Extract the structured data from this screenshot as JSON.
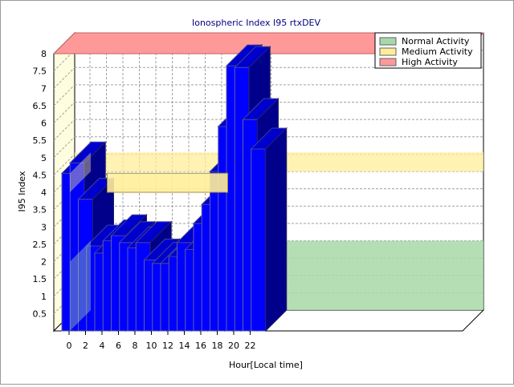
{
  "chart_data": {
    "type": "bar",
    "title": "Ionospheric Index I95 rtxDEV",
    "xlabel": "Hour[Local time]",
    "ylabel": "I95 Index",
    "x": [
      0,
      1,
      2,
      3,
      4,
      5,
      6,
      7,
      8,
      9,
      10,
      11,
      12,
      13,
      14,
      15,
      16,
      17,
      18,
      19,
      20,
      21,
      22,
      23
    ],
    "values": [
      4.55,
      4.85,
      3.8,
      2.45,
      2.25,
      2.6,
      2.75,
      2.55,
      2.4,
      2.55,
      2.05,
      1.95,
      1.95,
      2.15,
      2.55,
      2.35,
      3.1,
      3.65,
      4.6,
      5.9,
      7.65,
      7.6,
      6.1,
      5.25
    ],
    "ylim": [
      0,
      8
    ],
    "y_ticks": [
      "0.5",
      "1",
      "1.5",
      "2",
      "2.5",
      "3",
      "3.5",
      "4",
      "4.5",
      "5",
      "5.5",
      "6",
      "6.5",
      "7",
      "7.5",
      "8"
    ],
    "x_ticks": [
      "0",
      "2",
      "4",
      "6",
      "8",
      "10",
      "12",
      "14",
      "16",
      "18",
      "20",
      "22"
    ],
    "bands": [
      {
        "name": "Normal Activity",
        "from": 0,
        "to": 2,
        "color": "#a8d8a8"
      },
      {
        "name": "Medium Activity",
        "from": 4,
        "to": 4.55,
        "color": "#ffee99"
      },
      {
        "name": "High Activity",
        "from": 8,
        "to": 8,
        "color": "#ff9999"
      }
    ],
    "legend": {
      "position": "top-right",
      "entries": [
        {
          "label": "Normal Activity",
          "color": "#a8d8a8"
        },
        {
          "label": "Medium Activity",
          "color": "#ffee99"
        },
        {
          "label": "High Activity",
          "color": "#ff9999"
        }
      ]
    },
    "bar_color": "#0000ff",
    "grid": true
  }
}
